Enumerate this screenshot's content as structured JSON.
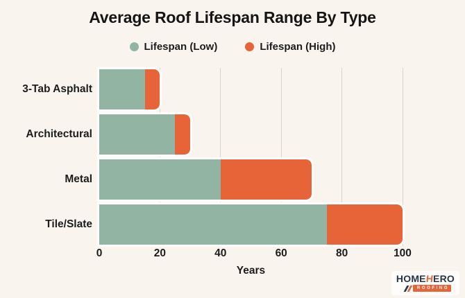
{
  "title": "Average Roof Lifespan Range By Type",
  "legend": {
    "items": [
      {
        "label": "Lifespan (Low)",
        "color": "#92b5a3"
      },
      {
        "label": "Lifespan (High)",
        "color": "#e66438"
      }
    ]
  },
  "axis": {
    "xlabel": "Years",
    "ticks": [
      0,
      20,
      40,
      60,
      80,
      100
    ]
  },
  "chart_data": {
    "type": "bar",
    "orientation": "horizontal",
    "stacked": true,
    "title": "Average Roof Lifespan Range By Type",
    "xlabel": "Years",
    "xlim": [
      0,
      100
    ],
    "grid": true,
    "legend_position": "top",
    "categories": [
      "3-Tab Asphalt",
      "Architectural",
      "Metal",
      "Tile/Slate"
    ],
    "series": [
      {
        "name": "Lifespan (Low)",
        "color": "#92b5a3",
        "values": [
          15,
          25,
          40,
          75
        ]
      },
      {
        "name": "Lifespan (High)",
        "color": "#e66438",
        "values": [
          20,
          30,
          70,
          100
        ]
      }
    ],
    "note": "High segment is drawn stacked from the low value up to the high value"
  },
  "colors": {
    "background": "#faf4ee",
    "gridline": "#d8d3cf",
    "bar_stroke": "#ffffff",
    "text": "#1c1c1c",
    "logo_navy": "#253646",
    "logo_orange": "#e66438"
  },
  "logo": {
    "word_start": "HOME",
    "word_accent": "H",
    "word_end": "ERO",
    "tagline": "ROOFING"
  }
}
